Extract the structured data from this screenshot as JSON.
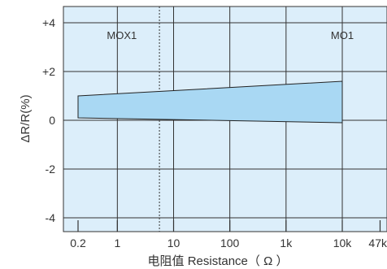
{
  "chart_data": {
    "type": "area",
    "xlabel": "电阻值  Resistance（ Ω ）",
    "ylabel": "ΔR/R(%)",
    "x_scale": "log",
    "x_ticks": [
      {
        "value": 0.2,
        "label": "0.2"
      },
      {
        "value": 1,
        "label": "1"
      },
      {
        "value": 10,
        "label": "10"
      },
      {
        "value": 100,
        "label": "100"
      },
      {
        "value": 1000,
        "label": "1k"
      },
      {
        "value": 10000,
        "label": "10k"
      },
      {
        "value": 47000,
        "label": "47k"
      }
    ],
    "y_ticks": [
      {
        "value": 4,
        "label": "+4"
      },
      {
        "value": 2,
        "label": "+2"
      },
      {
        "value": 0,
        "label": "0"
      },
      {
        "value": -2,
        "label": "-2"
      },
      {
        "value": -4,
        "label": "-4"
      }
    ],
    "ylim": [
      -4.2,
      4.2
    ],
    "xlim": [
      0.15,
      47000
    ],
    "grid": true,
    "divider_x": 5.6,
    "regions": [
      {
        "label": "MOX1",
        "x": 1.2
      },
      {
        "label": "MO1",
        "x": 10000
      }
    ],
    "band": {
      "upper": [
        {
          "x": 0.2,
          "y": 1.0
        },
        {
          "x": 10000,
          "y": 1.6
        }
      ],
      "lower": [
        {
          "x": 0.2,
          "y": 0.1
        },
        {
          "x": 10000,
          "y": -0.1
        }
      ]
    },
    "colors": {
      "plot_bg": "#dceefa",
      "band_fill": "#a9d8f3",
      "grid": "#333333",
      "text": "#333333"
    }
  }
}
